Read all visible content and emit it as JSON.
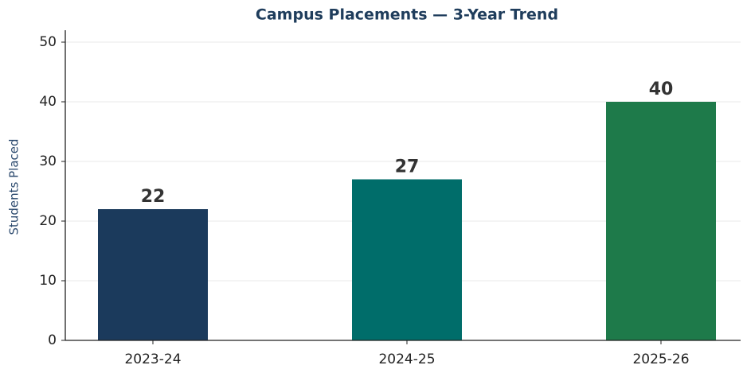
{
  "chart_data": {
    "type": "bar",
    "title": "Campus Placements — 3-Year Trend",
    "ylabel": "Students Placed",
    "categories": [
      "2023-24",
      "2024-25",
      "2025-26"
    ],
    "values": [
      22,
      27,
      40
    ],
    "colors": [
      "#1b3a5c",
      "#006d6a",
      "#1e7a4a"
    ],
    "ylim": [
      0,
      52
    ],
    "yticks": [
      0,
      10,
      20,
      30,
      40,
      50
    ],
    "grid": true
  }
}
